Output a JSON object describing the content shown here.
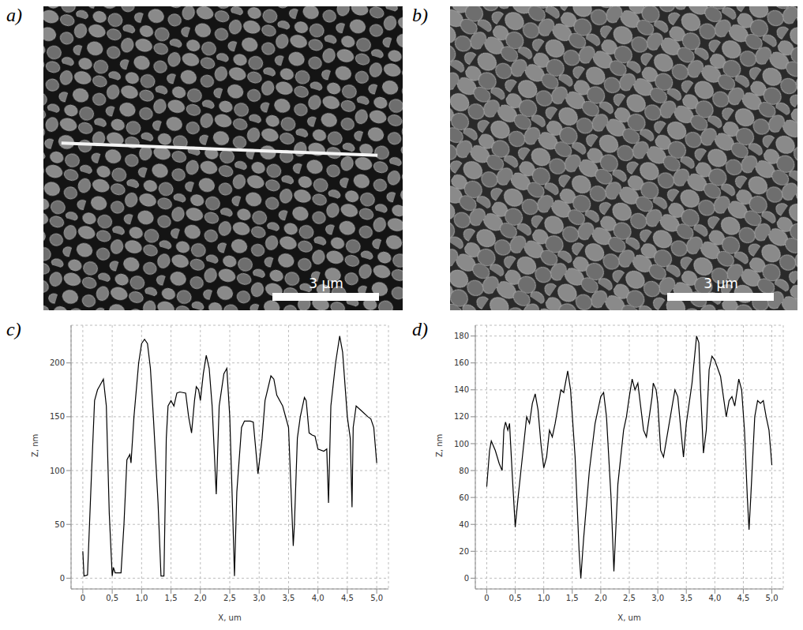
{
  "images": [
    {
      "panel": "a)",
      "scale_bar": "3 µm"
    },
    {
      "panel": "b)",
      "scale_bar": "3 µm"
    }
  ],
  "chart_data": [
    {
      "type": "line",
      "panel": "c)",
      "x_label": "X, um",
      "y_label": "Z, nm",
      "color": "#000000",
      "grid": true,
      "xlim": [
        -0.2,
        5.2
      ],
      "ylim": [
        -10,
        235
      ],
      "xticks": [
        0,
        {
          "value": 0.5,
          "label": "0,5"
        },
        {
          "value": 1,
          "label": "1,0"
        },
        {
          "value": 1.5,
          "label": "1,5"
        },
        {
          "value": 2,
          "label": "2,0"
        },
        {
          "value": 2.5,
          "label": "2,5"
        },
        {
          "value": 3,
          "label": "3,0"
        },
        {
          "value": 3.5,
          "label": "3,5"
        },
        {
          "value": 4,
          "label": "4,0"
        },
        {
          "value": 4.5,
          "label": "4,5"
        },
        {
          "value": 5,
          "label": "5,0"
        }
      ],
      "yticks": [
        0,
        50,
        100,
        150,
        200
      ],
      "x": [
        0,
        0.02,
        0.08,
        0.15,
        0.2,
        0.25,
        0.3,
        0.35,
        0.4,
        0.45,
        0.5,
        0.52,
        0.55,
        0.6,
        0.65,
        0.7,
        0.75,
        0.8,
        0.82,
        0.87,
        0.95,
        1.0,
        1.05,
        1.1,
        1.15,
        1.2,
        1.28,
        1.33,
        1.38,
        1.42,
        1.45,
        1.5,
        1.55,
        1.6,
        1.65,
        1.75,
        1.8,
        1.85,
        1.9,
        1.93,
        1.97,
        2.0,
        2.05,
        2.1,
        2.15,
        2.2,
        2.27,
        2.32,
        2.4,
        2.45,
        2.5,
        2.55,
        2.58,
        2.62,
        2.7,
        2.75,
        2.85,
        2.9,
        2.98,
        3.05,
        3.1,
        3.2,
        3.25,
        3.3,
        3.4,
        3.5,
        3.58,
        3.6,
        3.65,
        3.7,
        3.77,
        3.8,
        3.85,
        3.9,
        3.95,
        4.0,
        4.1,
        4.15,
        4.18,
        4.22,
        4.3,
        4.37,
        4.42,
        4.5,
        4.55,
        4.58,
        4.6,
        4.65,
        4.75,
        4.85,
        4.9,
        4.95,
        5.0
      ],
      "values": [
        25,
        2,
        3,
        100,
        165,
        175,
        180,
        185,
        160,
        60,
        2,
        10,
        5,
        5,
        5,
        50,
        110,
        115,
        107,
        150,
        200,
        218,
        222,
        218,
        195,
        150,
        70,
        2,
        2,
        130,
        160,
        165,
        160,
        172,
        173,
        172,
        150,
        135,
        165,
        178,
        175,
        165,
        190,
        207,
        195,
        160,
        78,
        160,
        190,
        195,
        150,
        60,
        2,
        80,
        140,
        146,
        146,
        145,
        97,
        130,
        165,
        188,
        185,
        170,
        160,
        140,
        30,
        50,
        130,
        150,
        168,
        165,
        135,
        133,
        132,
        120,
        118,
        120,
        70,
        160,
        200,
        225,
        210,
        150,
        130,
        66,
        140,
        160,
        155,
        150,
        148,
        140,
        107
      ]
    },
    {
      "type": "line",
      "panel": "d)",
      "x_label": "X, um",
      "y_label": "Z, nm",
      "color": "#000000",
      "grid": true,
      "xlim": [
        -0.2,
        5.2
      ],
      "ylim": [
        -8,
        188
      ],
      "xticks": [
        0,
        {
          "value": 0.5,
          "label": "0,5"
        },
        {
          "value": 1,
          "label": "1,0"
        },
        {
          "value": 1.5,
          "label": "1,5"
        },
        {
          "value": 2,
          "label": "2,0"
        },
        {
          "value": 2.5,
          "label": "2,5"
        },
        {
          "value": 3,
          "label": "3,0"
        },
        {
          "value": 3.5,
          "label": "3,5"
        },
        {
          "value": 4,
          "label": "4,0"
        },
        {
          "value": 4.5,
          "label": "4,5"
        },
        {
          "value": 5,
          "label": "5,0"
        }
      ],
      "yticks": [
        0,
        20,
        40,
        60,
        80,
        100,
        120,
        140,
        160,
        180
      ],
      "x": [
        0,
        0.05,
        0.08,
        0.15,
        0.22,
        0.27,
        0.3,
        0.33,
        0.37,
        0.4,
        0.45,
        0.5,
        0.55,
        0.6,
        0.65,
        0.7,
        0.75,
        0.8,
        0.85,
        0.9,
        0.95,
        1.0,
        1.05,
        1.1,
        1.15,
        1.2,
        1.3,
        1.35,
        1.42,
        1.47,
        1.55,
        1.62,
        1.65,
        1.7,
        1.8,
        1.9,
        2.0,
        2.05,
        2.1,
        2.18,
        2.23,
        2.3,
        2.4,
        2.45,
        2.5,
        2.55,
        2.6,
        2.65,
        2.75,
        2.8,
        2.9,
        2.92,
        2.97,
        3.0,
        3.05,
        3.1,
        3.2,
        3.3,
        3.35,
        3.45,
        3.5,
        3.6,
        3.68,
        3.72,
        3.75,
        3.8,
        3.85,
        3.9,
        3.95,
        4.0,
        4.1,
        4.15,
        4.2,
        4.25,
        4.3,
        4.35,
        4.42,
        4.47,
        4.52,
        4.57,
        4.6,
        4.63,
        4.7,
        4.75,
        4.8,
        4.85,
        4.9,
        4.95,
        5.0
      ],
      "values": [
        68,
        95,
        102,
        95,
        85,
        80,
        110,
        116,
        110,
        115,
        75,
        38,
        60,
        80,
        100,
        120,
        115,
        130,
        137,
        125,
        100,
        82,
        90,
        110,
        105,
        115,
        140,
        138,
        154,
        140,
        90,
        20,
        0,
        30,
        80,
        115,
        135,
        138,
        120,
        60,
        5,
        70,
        110,
        120,
        135,
        148,
        140,
        145,
        110,
        105,
        135,
        145,
        140,
        130,
        95,
        90,
        115,
        140,
        135,
        90,
        115,
        145,
        180,
        175,
        140,
        93,
        110,
        155,
        165,
        162,
        150,
        135,
        120,
        132,
        135,
        128,
        148,
        140,
        110,
        60,
        36,
        60,
        120,
        132,
        130,
        132,
        120,
        110,
        84
      ]
    }
  ]
}
